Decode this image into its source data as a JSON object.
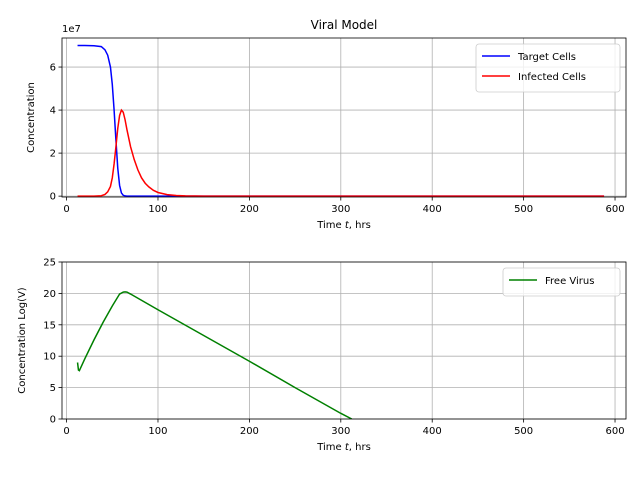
{
  "chart_data": [
    {
      "type": "line",
      "title": "Viral Model",
      "xlabel": "Time $t$, hrs",
      "ylabel": "Concentration",
      "offset_text": "1e7",
      "xlim": [
        -5,
        612
      ],
      "ylim": [
        -400000,
        73500000
      ],
      "xticks": [
        0,
        100,
        200,
        300,
        400,
        500,
        600
      ],
      "xtick_labels": [
        "0",
        "100",
        "200",
        "300",
        "400",
        "500",
        "600"
      ],
      "yticks": [
        0,
        20000000,
        40000000,
        60000000
      ],
      "ytick_labels": [
        "0",
        "2",
        "4",
        "6"
      ],
      "grid": true,
      "legend": "top-right",
      "series": [
        {
          "name": "Target Cells",
          "color": "#0000ff",
          "x": [
            12,
            20,
            30,
            38,
            42,
            45,
            48,
            50,
            52,
            54,
            56,
            58,
            60,
            62,
            64,
            66,
            70,
            80,
            100,
            150,
            300,
            588
          ],
          "y": [
            70000000,
            70000000,
            69900000,
            69500000,
            68000000,
            65500000,
            60000000,
            52000000,
            40000000,
            26000000,
            13000000,
            5000000,
            1500000,
            400000,
            100000,
            20000,
            0,
            0,
            0,
            0,
            0,
            0
          ]
        },
        {
          "name": "Infected Cells",
          "color": "#ff0000",
          "x": [
            12,
            30,
            38,
            42,
            45,
            48,
            50,
            52,
            54,
            56,
            58,
            60,
            62,
            64,
            66,
            68,
            70,
            74,
            78,
            82,
            86,
            90,
            95,
            100,
            110,
            120,
            130,
            150,
            200,
            300,
            588
          ],
          "y": [
            0,
            0,
            200000,
            800000,
            2000000,
            4500000,
            8500000,
            15000000,
            23000000,
            31500000,
            37500000,
            40000000,
            39000000,
            35500000,
            31000000,
            27000000,
            23000000,
            17000000,
            12200000,
            8500000,
            6000000,
            4300000,
            2700000,
            1700000,
            700000,
            280000,
            100000,
            20000,
            0,
            0,
            0
          ]
        }
      ]
    },
    {
      "type": "line",
      "title": "",
      "xlabel": "Time $t$, hrs",
      "ylabel": "Concentration Log(V)",
      "xlim": [
        -5,
        612
      ],
      "ylim": [
        0,
        25
      ],
      "xticks": [
        0,
        100,
        200,
        300,
        400,
        500,
        600
      ],
      "xtick_labels": [
        "0",
        "100",
        "200",
        "300",
        "400",
        "500",
        "600"
      ],
      "yticks": [
        0,
        5,
        10,
        15,
        20,
        25
      ],
      "ytick_labels": [
        "0",
        "5",
        "10",
        "15",
        "20",
        "25"
      ],
      "grid": true,
      "legend": "top-right",
      "series": [
        {
          "name": "Free Virus",
          "color": "#008000",
          "x": [
            12,
            13,
            14,
            20,
            30,
            40,
            50,
            58,
            62,
            64,
            66,
            70,
            100,
            150,
            200,
            250,
            300,
            312
          ],
          "y": [
            9.0,
            7.8,
            7.7,
            9.6,
            12.6,
            15.4,
            18.0,
            19.9,
            20.2,
            20.25,
            20.2,
            19.9,
            17.4,
            13.3,
            9.2,
            5.0,
            0.9,
            0.0
          ]
        }
      ]
    }
  ]
}
